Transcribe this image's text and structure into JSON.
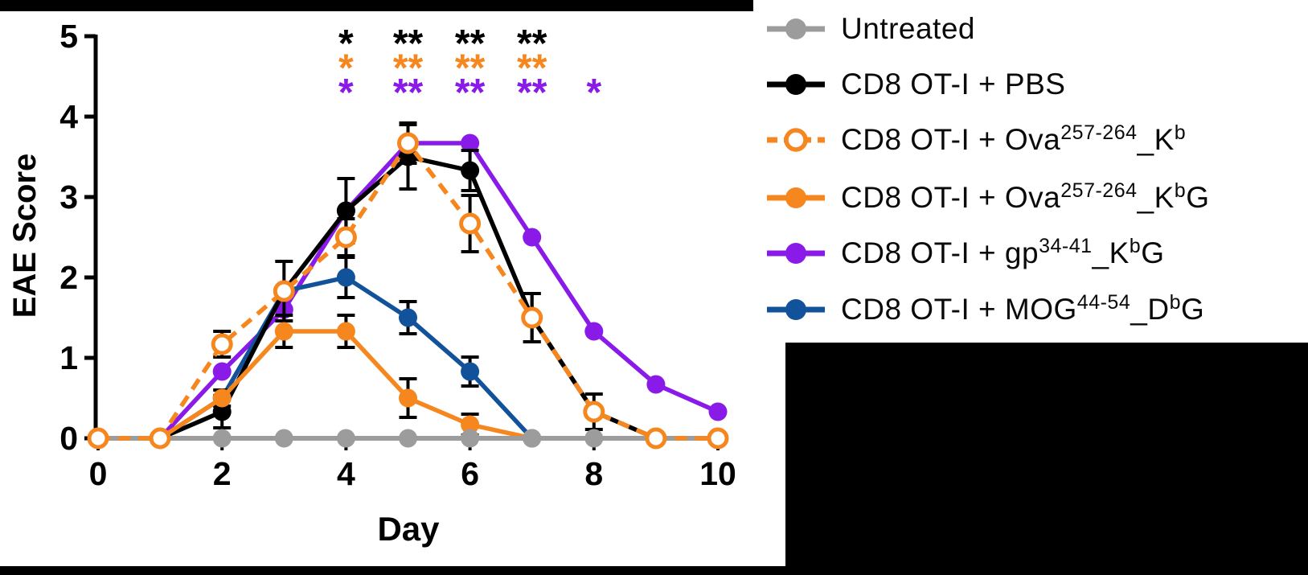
{
  "page": {
    "background": "#ffffff",
    "decor_bar_color": "#000000"
  },
  "chart_data": {
    "type": "line",
    "title": "",
    "xlabel": "Day",
    "ylabel": "EAE Score",
    "x": [
      0,
      1,
      2,
      3,
      4,
      5,
      6,
      7,
      8,
      9,
      10
    ],
    "x_tick_labels": [
      "0",
      "2",
      "4",
      "6",
      "8",
      "10"
    ],
    "x_ticks": [
      0,
      2,
      4,
      6,
      8,
      10
    ],
    "y_tick_labels": [
      "0",
      "1",
      "2",
      "3",
      "4",
      "5"
    ],
    "y_ticks": [
      0,
      1,
      2,
      3,
      4,
      5
    ],
    "xlim": [
      0,
      10
    ],
    "ylim": [
      0,
      5
    ],
    "grid": false,
    "legend_position": "right",
    "error_bar_color": "#000000",
    "series": [
      {
        "id": "untreated",
        "name": "Untreated",
        "color": "#9C9C9C",
        "marker": "filled-circle",
        "line_style": "solid",
        "values": [
          0,
          0,
          0,
          0,
          0,
          0,
          0,
          0,
          0,
          0,
          0
        ],
        "errors": [
          0,
          0,
          0,
          0,
          0,
          0,
          0,
          0,
          0,
          0,
          0
        ]
      },
      {
        "id": "pbs",
        "name": "CD8 OT-I + PBS",
        "color": "#000000",
        "marker": "filled-circle",
        "line_style": "solid",
        "values": [
          0,
          0,
          0.33,
          1.83,
          2.83,
          3.5,
          3.33,
          1.5,
          0.33,
          0,
          0
        ],
        "errors": [
          0,
          0,
          0.2,
          0.37,
          0.4,
          0.4,
          0.25,
          0.3,
          0.22,
          0,
          0
        ]
      },
      {
        "id": "ova-kb",
        "name": "CD8 OT-I + Ova257-264_Kb",
        "color": "#F6871F",
        "marker": "open-circle",
        "line_style": "dashed",
        "values": [
          0,
          0,
          1.17,
          1.83,
          2.5,
          3.67,
          2.67,
          1.5,
          0.33,
          0,
          0
        ],
        "errors": [
          0,
          0,
          0.16,
          0,
          0.23,
          0.25,
          0.35,
          0.3,
          0,
          0,
          0
        ]
      },
      {
        "id": "ova-kbg",
        "name": "CD8 OT-I + Ova257-264_KbG",
        "color": "#F6871F",
        "marker": "filled-circle",
        "line_style": "solid",
        "values": [
          0,
          0,
          0.5,
          1.33,
          1.33,
          0.5,
          0.17,
          0,
          null,
          null,
          null
        ],
        "errors": [
          0,
          0,
          0.1,
          0.2,
          0.2,
          0.24,
          0.13,
          0,
          0,
          0,
          0
        ]
      },
      {
        "id": "gp-kbg",
        "name": "CD8 OT-I + gp34-41_KbG",
        "color": "#8A1AE8",
        "marker": "filled-circle",
        "line_style": "solid",
        "values": [
          0,
          0,
          0.83,
          1.6,
          2.83,
          3.67,
          3.67,
          2.5,
          1.33,
          0.67,
          0.33
        ],
        "errors": [
          0,
          0,
          0,
          0,
          0,
          0,
          0,
          0,
          0,
          0,
          0
        ]
      },
      {
        "id": "mog-dbg",
        "name": "CD8 OT-I + MOG44-54_DbG",
        "color": "#12529B",
        "marker": "filled-circle",
        "line_style": "solid",
        "values": [
          0,
          0,
          0.5,
          1.83,
          2.0,
          1.5,
          0.83,
          0,
          null,
          null,
          null
        ],
        "errors": [
          0,
          0,
          0,
          0,
          0.25,
          0.2,
          0.18,
          0,
          0,
          0,
          0
        ]
      }
    ],
    "draw_order": [
      "gp-kbg",
      "mog-dbg",
      "pbs",
      "ova-kbg",
      "untreated",
      "ova-kb"
    ],
    "significance_rows": [
      {
        "row": "black",
        "color": "#000000",
        "marks": [
          {
            "day": 4,
            "label": "*"
          },
          {
            "day": 5,
            "label": "**"
          },
          {
            "day": 6,
            "label": "**"
          },
          {
            "day": 7,
            "label": "**"
          }
        ]
      },
      {
        "row": "orange",
        "color": "#F6871F",
        "marks": [
          {
            "day": 4,
            "label": "*"
          },
          {
            "day": 5,
            "label": "**"
          },
          {
            "day": 6,
            "label": "**"
          },
          {
            "day": 7,
            "label": "**"
          }
        ]
      },
      {
        "row": "purple",
        "color": "#8A1AE8",
        "marks": [
          {
            "day": 4,
            "label": "*"
          },
          {
            "day": 5,
            "label": "**"
          },
          {
            "day": 6,
            "label": "**"
          },
          {
            "day": 7,
            "label": "**"
          },
          {
            "day": 8,
            "label": "*"
          }
        ]
      }
    ]
  },
  "legend": {
    "items": [
      {
        "series_id": "untreated",
        "color": "#9C9C9C",
        "marker": "filled-circle",
        "line_style": "solid",
        "label_parts": [
          {
            "t": "Untreated"
          }
        ]
      },
      {
        "series_id": "pbs",
        "color": "#000000",
        "marker": "filled-circle",
        "line_style": "solid",
        "label_parts": [
          {
            "t": "CD8 OT-I + PBS"
          }
        ]
      },
      {
        "series_id": "ova-kb",
        "color": "#F6871F",
        "marker": "open-circle",
        "line_style": "dashed",
        "label_parts": [
          {
            "t": "CD8 OT-I + Ova"
          },
          {
            "t": "257-264",
            "sup": true
          },
          {
            "t": "_K"
          },
          {
            "t": "b",
            "sup": true
          }
        ]
      },
      {
        "series_id": "ova-kbg",
        "color": "#F6871F",
        "marker": "filled-circle",
        "line_style": "solid",
        "label_parts": [
          {
            "t": "CD8 OT-I + Ova"
          },
          {
            "t": "257-264",
            "sup": true
          },
          {
            "t": "_K"
          },
          {
            "t": "b",
            "sup": true
          },
          {
            "t": "G"
          }
        ]
      },
      {
        "series_id": "gp-kbg",
        "color": "#8A1AE8",
        "marker": "filled-circle",
        "line_style": "solid",
        "label_parts": [
          {
            "t": "CD8 OT-I + gp"
          },
          {
            "t": "34-41",
            "sup": true
          },
          {
            "t": "_K"
          },
          {
            "t": "b",
            "sup": true
          },
          {
            "t": "G"
          }
        ]
      },
      {
        "series_id": "mog-dbg",
        "color": "#12529B",
        "marker": "filled-circle",
        "line_style": "solid",
        "label_parts": [
          {
            "t": "CD8 OT-I + MOG"
          },
          {
            "t": "44-54",
            "sup": true
          },
          {
            "t": "_D"
          },
          {
            "t": "b",
            "sup": true
          },
          {
            "t": "G"
          }
        ]
      }
    ]
  }
}
